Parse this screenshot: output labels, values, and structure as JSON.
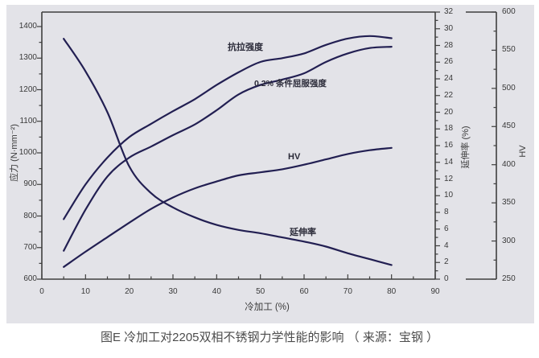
{
  "figure": {
    "caption": "图E 冷加工对2205双相不锈钢力学性能的影响 （ 来源：宝钢 ）",
    "panel_background": "#e3e3e8",
    "curve_color": "#221f52",
    "axis_color": "#3f3f3f",
    "label_color": "#3a3a3a"
  },
  "chart_data": {
    "type": "line",
    "title": "图E 冷加工对2205双相不锈钢力学性能的影响 （ 来源：宝钢 ）",
    "xlabel": "冷加工 (%)",
    "x": [
      5,
      10,
      15,
      20,
      25,
      30,
      35,
      40,
      45,
      50,
      55,
      60,
      65,
      70,
      75,
      80
    ],
    "x_axis": {
      "min": 0,
      "max": 90,
      "major_ticks": [
        0,
        10,
        20,
        30,
        40,
        50,
        60,
        70,
        80,
        90
      ],
      "minor_step": 5
    },
    "left_axis": {
      "label": "应力 (N·mm⁻²)",
      "min": 600,
      "max": 1400,
      "major_ticks": [
        600,
        700,
        800,
        900,
        1000,
        1100,
        1200,
        1300,
        1400
      ],
      "minor_step": 50
    },
    "right_axis_elongation": {
      "label": "延伸率 (%)",
      "min": 0,
      "max": 32,
      "major_ticks": [
        0,
        2,
        4,
        6,
        8,
        10,
        12,
        14,
        16,
        18,
        20,
        22,
        24,
        26,
        28,
        30,
        32
      ],
      "minor_step": 1
    },
    "right_axis_hv": {
      "label": "HV",
      "min": 250,
      "max": 600,
      "major_ticks": [
        250,
        300,
        350,
        400,
        450,
        500,
        550,
        600
      ],
      "minor_step": 25
    },
    "grid": false,
    "legend_position": "inline-labels",
    "series": [
      {
        "name": "抗拉强度",
        "axis": "stress",
        "values": [
          790,
          900,
          985,
          1050,
          1092,
          1132,
          1170,
          1215,
          1255,
          1288,
          1300,
          1315,
          1342,
          1362,
          1370,
          1363
        ]
      },
      {
        "name": "0.2% 条件屈服强度",
        "axis": "stress",
        "values": [
          690,
          820,
          925,
          985,
          1020,
          1056,
          1090,
          1135,
          1185,
          1215,
          1232,
          1252,
          1288,
          1315,
          1332,
          1336
        ]
      },
      {
        "name": "HV",
        "axis": "hv",
        "values": [
          266,
          286,
          305,
          324,
          342,
          357,
          369,
          378,
          386,
          390,
          394,
          400,
          407,
          414,
          419,
          422
        ]
      },
      {
        "name": "延伸率",
        "axis": "elongation",
        "values": [
          28.8,
          24.9,
          20.0,
          13.5,
          10.3,
          8.6,
          7.4,
          6.5,
          5.9,
          5.5,
          5.0,
          4.5,
          3.9,
          3.1,
          2.4,
          1.7
        ]
      }
    ]
  }
}
